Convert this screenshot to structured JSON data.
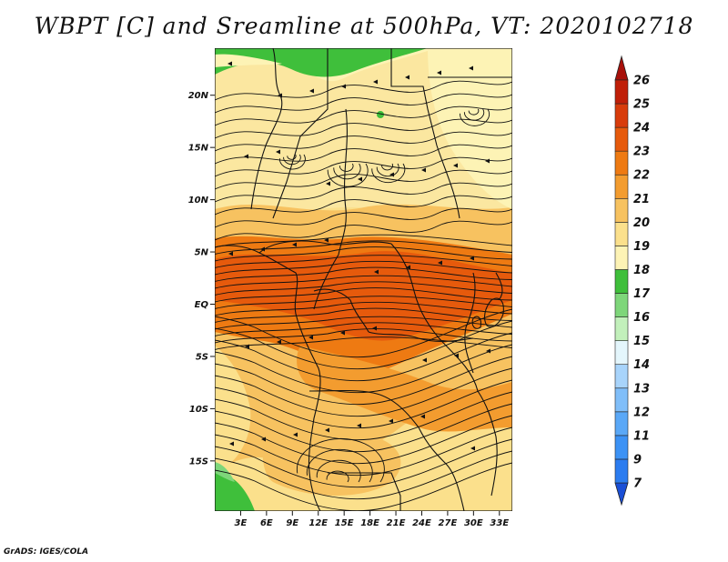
{
  "title": "WBPT [C] and Sreamline at 500hPa, VT: 2020102718",
  "credit": "GrADS: IGES/COLA",
  "map": {
    "lon_range": [
      0,
      34.5
    ],
    "lat_range": [
      -19.8,
      24.5
    ],
    "lat_ticks": [
      {
        "value": 20,
        "label": "20N"
      },
      {
        "value": 15,
        "label": "15N"
      },
      {
        "value": 10,
        "label": "10N"
      },
      {
        "value": 5,
        "label": "5N"
      },
      {
        "value": 0,
        "label": "EQ"
      },
      {
        "value": -5,
        "label": "5S"
      },
      {
        "value": -10,
        "label": "10S"
      },
      {
        "value": -15,
        "label": "15S"
      }
    ],
    "lon_ticks": [
      {
        "value": 3,
        "label": "3E"
      },
      {
        "value": 6,
        "label": "6E"
      },
      {
        "value": 9,
        "label": "9E"
      },
      {
        "value": 12,
        "label": "12E"
      },
      {
        "value": 15,
        "label": "15E"
      },
      {
        "value": 18,
        "label": "18E"
      },
      {
        "value": 21,
        "label": "21E"
      },
      {
        "value": 24,
        "label": "24E"
      },
      {
        "value": 27,
        "label": "27E"
      },
      {
        "value": 30,
        "label": "30E"
      },
      {
        "value": 33,
        "label": "33E"
      }
    ]
  },
  "colorbar": {
    "levels": [
      {
        "label": "7",
        "color": "#1e64e6"
      },
      {
        "label": "9",
        "color": "#2b7cf0"
      },
      {
        "label": "11",
        "color": "#3c92f5"
      },
      {
        "label": "12",
        "color": "#5aa8f7"
      },
      {
        "label": "13",
        "color": "#80bef9"
      },
      {
        "label": "14",
        "color": "#a8d4fb"
      },
      {
        "label": "15",
        "color": "#e4f6fc"
      },
      {
        "label": "16",
        "color": "#c2f0bb"
      },
      {
        "label": "17",
        "color": "#7ed67a"
      },
      {
        "label": "18",
        "color": "#3fbf3b"
      },
      {
        "label": "19",
        "color": "#fdf3b5"
      },
      {
        "label": "20",
        "color": "#fbe08c"
      },
      {
        "label": "21",
        "color": "#f7c260"
      },
      {
        "label": "22",
        "color": "#f39c2f"
      },
      {
        "label": "23",
        "color": "#ee7a12"
      },
      {
        "label": "24",
        "color": "#e65a0c"
      },
      {
        "label": "25",
        "color": "#d83c0b"
      },
      {
        "label": "26",
        "color": "#c01f08"
      }
    ],
    "top_cap_color": "#a8100a",
    "bottom_cap_color": "#1a4fd6"
  }
}
